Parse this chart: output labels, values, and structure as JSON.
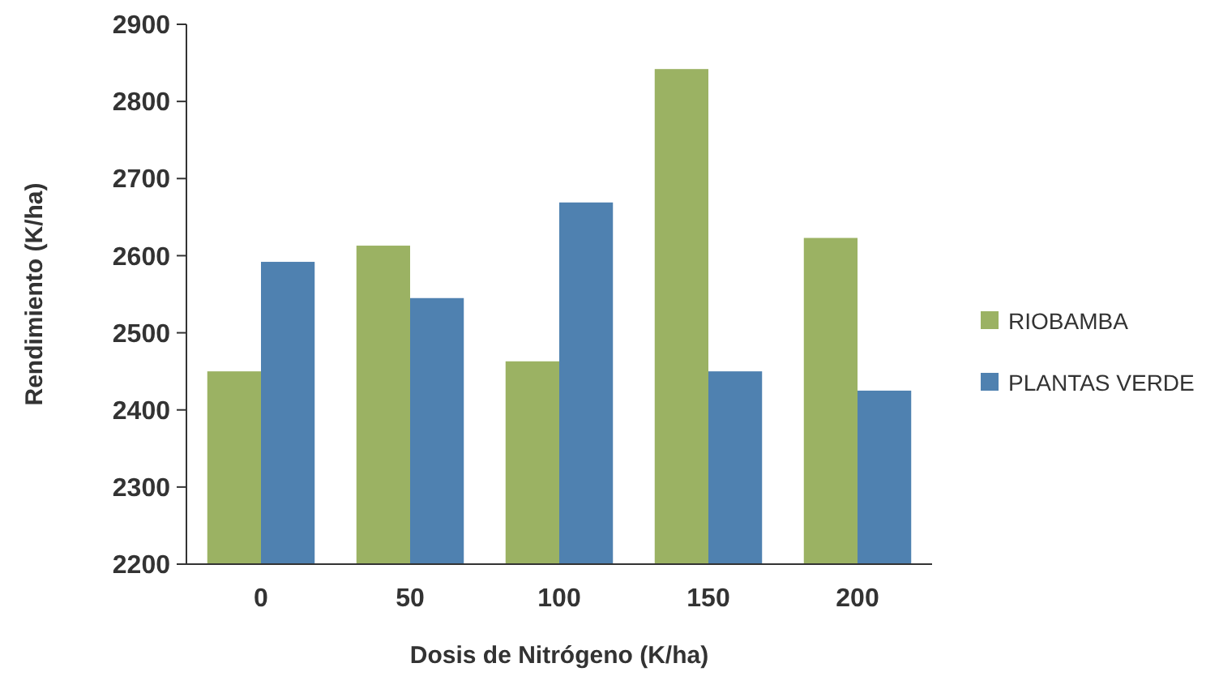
{
  "chart_data": {
    "type": "bar",
    "xlabel": "Dosis de Nitrógeno (K/ha)",
    "ylabel": "Rendimiento (K/ha)",
    "categories": [
      "0",
      "50",
      "100",
      "150",
      "200"
    ],
    "series": [
      {
        "name": "RIOBAMBA",
        "color": "#9bb263",
        "values": [
          2450,
          2613,
          2463,
          2842,
          2623
        ]
      },
      {
        "name": "PLANTAS VERDE",
        "color": "#4f81b0",
        "values": [
          2592,
          2545,
          2669,
          2450,
          2425
        ]
      }
    ],
    "ylim": [
      2200,
      2900
    ],
    "yticks": [
      2200,
      2300,
      2400,
      2500,
      2600,
      2700,
      2800,
      2900
    ],
    "grid": false,
    "legend": "right"
  }
}
